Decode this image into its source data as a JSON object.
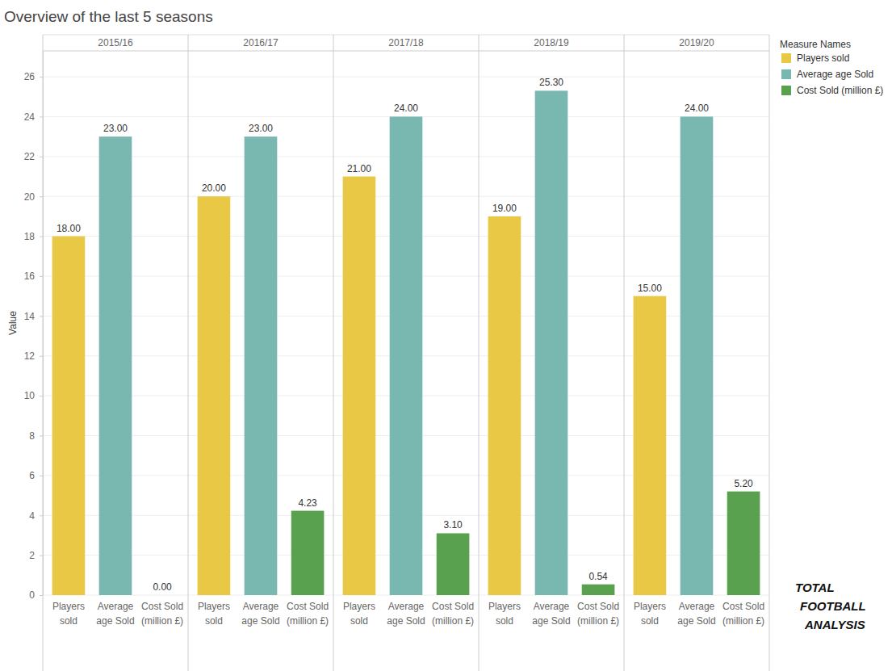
{
  "chart_data": {
    "type": "bar",
    "title": "Overview of the last 5 seasons",
    "y_label": "Value",
    "legend_title": "Measure Names",
    "legend": "top-right",
    "categories": [
      "2015/16",
      "2016/17",
      "2017/18",
      "2018/19",
      "2019/20"
    ],
    "series": [
      {
        "name": "Players sold",
        "color": "#e8c845",
        "values": [
          18,
          20,
          21,
          19,
          15
        ],
        "value_labels": [
          "18.00",
          "20.00",
          "21.00",
          "19.00",
          "15.00"
        ]
      },
      {
        "name": "Average age Sold",
        "color": "#79b7b1",
        "values": [
          23,
          23,
          24,
          25.3,
          24
        ],
        "value_labels": [
          "23.00",
          "23.00",
          "24.00",
          "25.30",
          "24.00"
        ]
      },
      {
        "name": "Cost Sold (million £)",
        "color": "#59a14f",
        "values": [
          0,
          4.23,
          3.1,
          0.54,
          5.2
        ],
        "value_labels": [
          "0.00",
          "4.23",
          "3.10",
          "0.54",
          "5.20"
        ]
      }
    ],
    "ylim": [
      0,
      27.3
    ],
    "yticks": [
      0,
      2,
      4,
      6,
      8,
      10,
      12,
      14,
      16,
      18,
      20,
      22,
      24,
      26
    ],
    "grid": true,
    "data_labels": true,
    "annotations": [
      "TOTAL",
      "FOOTBALL",
      "ANALYSIS"
    ]
  }
}
